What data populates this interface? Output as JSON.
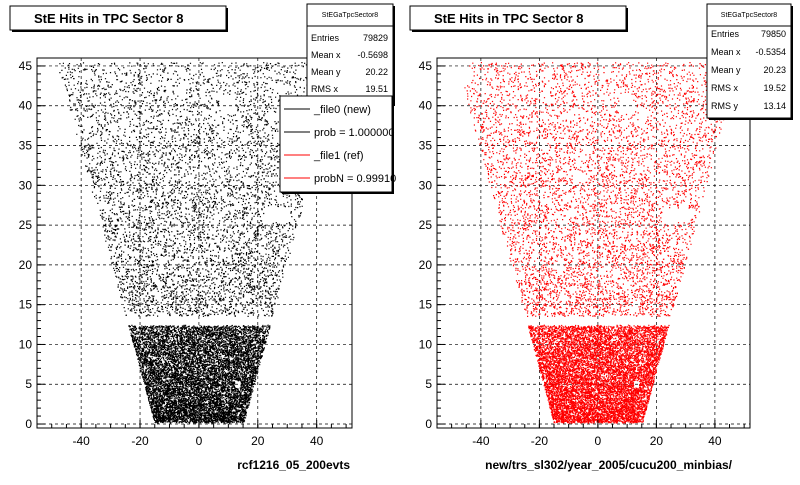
{
  "canvas_background": "#ffffff",
  "page_footer": "",
  "legend": {
    "entries": [
      {
        "label": "_file0 (new)",
        "color": "#000000"
      },
      {
        "label": "prob = 1.000000",
        "color": "#000000"
      },
      {
        "label": "_file1 (ref)",
        "color": "#ff0000"
      },
      {
        "label": "probN = 0.99910",
        "color": "#ff0000"
      }
    ]
  },
  "chart_data": [
    {
      "type": "scatter",
      "title": "StE Hits in TPC Sector 8",
      "xlabel": "rcf1216_05_200evts",
      "ylabel": "",
      "xlim": [
        -55,
        52
      ],
      "ylim": [
        -0.5,
        46
      ],
      "xticks": [
        -40,
        -20,
        0,
        20,
        40
      ],
      "yticks": [
        0,
        5,
        10,
        15,
        20,
        25,
        30,
        35,
        40,
        45
      ],
      "grid": true,
      "marker_color": "#000000",
      "stats": {
        "name": "StEGaTpcSector8",
        "rows": [
          {
            "label": "Entries",
            "value": "79829"
          },
          {
            "label": "Mean x",
            "value": "-0.5698"
          },
          {
            "label": "Mean y",
            "value": "20.22"
          },
          {
            "label": "RMS x",
            "value": "19.51"
          }
        ]
      },
      "legend_position": "top-right"
    },
    {
      "type": "scatter",
      "title": "StE Hits in TPC Sector 8",
      "xlabel": "new/trs_sl302/year_2005/cucu200_minbias/",
      "ylabel": "",
      "xlim": [
        -55,
        52
      ],
      "ylim": [
        -0.5,
        46
      ],
      "xticks": [
        -40,
        -20,
        0,
        20,
        40
      ],
      "yticks": [
        0,
        5,
        10,
        15,
        20,
        25,
        30,
        35,
        40,
        45
      ],
      "grid": true,
      "marker_color": "#ff0000",
      "stats": {
        "name": "StEGaTpcSector8",
        "rows": [
          {
            "label": "Entries",
            "value": "79850"
          },
          {
            "label": "Mean x",
            "value": "-0.5354"
          },
          {
            "label": "Mean y",
            "value": "20.23"
          },
          {
            "label": "RMS x",
            "value": "19.52"
          },
          {
            "label": "RMS y",
            "value": "13.14"
          }
        ]
      }
    }
  ]
}
